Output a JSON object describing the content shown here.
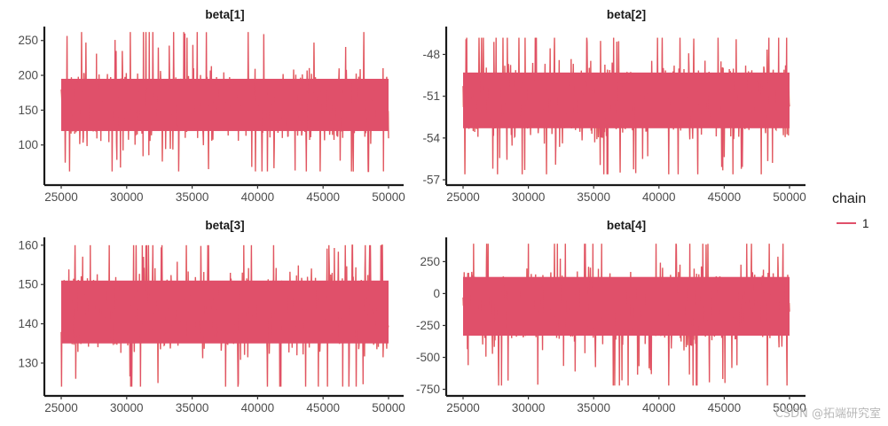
{
  "chart_data": {
    "type": "line",
    "chart": "MCMC trace plot",
    "x_range": [
      25000,
      50000
    ],
    "colors": {
      "chain_band": "#e0506a",
      "chain_edge": "#e8833a"
    },
    "legend": {
      "title": "chain",
      "position": "right",
      "entries": [
        "1"
      ]
    },
    "panels": [
      {
        "title": "beta[1]",
        "ylim": [
          50,
          270
        ],
        "yticks": [
          100,
          150,
          200,
          250
        ],
        "ytick_labels": [
          "100",
          "150",
          "200",
          "250"
        ],
        "xticks": [
          25000,
          30000,
          35000,
          40000,
          45000,
          50000
        ],
        "xtick_labels": [
          "25000",
          "30000",
          "35000",
          "40000",
          "45000",
          "50000"
        ],
        "series": [
          {
            "name": "1",
            "center": 155,
            "bulk_low": 120,
            "bulk_high": 195,
            "min": 62,
            "max": 262
          }
        ]
      },
      {
        "title": "beta[2]",
        "ylim": [
          -57,
          -46
        ],
        "yticks": [
          -57,
          -54,
          -51,
          -48
        ],
        "ytick_labels": [
          "-57",
          "-54",
          "-51",
          "-48"
        ],
        "xticks": [
          25000,
          30000,
          35000,
          40000,
          45000,
          50000
        ],
        "xtick_labels": [
          "25000",
          "30000",
          "35000",
          "40000",
          "45000",
          "50000"
        ],
        "series": [
          {
            "name": "1",
            "center": -51.3,
            "bulk_low": -53.3,
            "bulk_high": -49.3,
            "min": -56.6,
            "max": -46.8
          }
        ]
      },
      {
        "title": "beta[3]",
        "ylim": [
          123,
          162
        ],
        "yticks": [
          130,
          140,
          150,
          160
        ],
        "ytick_labels": [
          "130",
          "140",
          "150",
          "160"
        ],
        "xticks": [
          25000,
          30000,
          35000,
          40000,
          45000,
          50000
        ],
        "xtick_labels": [
          "25000",
          "30000",
          "35000",
          "40000",
          "45000",
          "50000"
        ],
        "series": [
          {
            "name": "1",
            "center": 143,
            "bulk_low": 135,
            "bulk_high": 151,
            "min": 124,
            "max": 160
          }
        ]
      },
      {
        "title": "beta[4]",
        "ylim": [
          -760,
          440
        ],
        "yticks": [
          -750,
          -500,
          -250,
          0,
          250
        ],
        "ytick_labels": [
          "-750",
          "-500",
          "-250",
          "0",
          "250"
        ],
        "xticks": [
          25000,
          30000,
          35000,
          40000,
          45000,
          50000
        ],
        "xtick_labels": [
          "25000",
          "30000",
          "35000",
          "40000",
          "45000",
          "50000"
        ],
        "series": [
          {
            "name": "1",
            "center": -100,
            "bulk_low": -330,
            "bulk_high": 130,
            "min": -720,
            "max": 390
          }
        ]
      }
    ]
  },
  "watermark": "CSDN @拓端研究室"
}
